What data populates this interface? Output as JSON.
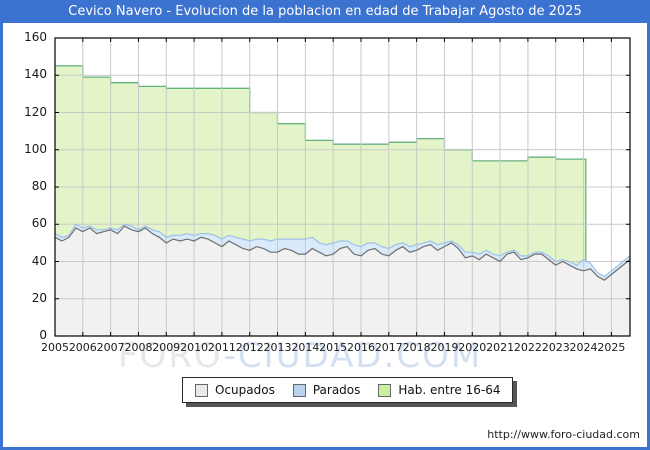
{
  "header": {
    "title": "Cevico Navero - Evolucion de la poblacion en edad de Trabajar Agosto de 2025"
  },
  "footer": {
    "url": "http://www.foro-ciudad.com"
  },
  "watermark": {
    "part1": "FORO",
    "part2": "-CIUDAD.COM"
  },
  "legend": {
    "items": [
      {
        "label": "Ocupados"
      },
      {
        "label": "Parados"
      },
      {
        "label": "Hab. entre 16-64"
      }
    ]
  },
  "colors": {
    "header_bg": "#3c72d0",
    "frame": "#3c72d0",
    "plot_border": "#000000",
    "grid": "#c9c9c9",
    "ocupados_fill": "#f1f1f1",
    "ocupados_line": "#6e6e6e",
    "parados_fill": "#d9eafb",
    "parados_line": "#9fc0e8",
    "hab_fill": "#e3f5c8",
    "hab_line": "#63b17d",
    "legend_ocupados_swatch": "#e9e9e9",
    "legend_parados_swatch": "#b9d3ee",
    "legend_hab_swatch": "#c9ef9e",
    "watermark_gray": "#e7e7e7",
    "watermark_blue": "#d3e0f2"
  },
  "chart_data": {
    "type": "area",
    "title": "Cevico Navero - Evolucion de la poblacion en edad de Trabajar Agosto de 2025",
    "legend_position": "bottom",
    "grid": true,
    "x_axis": {
      "min": 2005,
      "max": 2025.67,
      "tick_labels": [
        "2005",
        "2006",
        "2007",
        "2008",
        "2009",
        "2010",
        "2011",
        "2012",
        "2013",
        "2014",
        "2015",
        "2016",
        "2017",
        "2018",
        "2019",
        "2020",
        "2021",
        "2022",
        "2023",
        "2024",
        "2025"
      ]
    },
    "y_axis": {
      "min": 0,
      "max": 160,
      "ticks": [
        0,
        20,
        40,
        60,
        80,
        100,
        120,
        140,
        160
      ]
    },
    "series": [
      {
        "name": "Hab. entre 16-64",
        "kind": "step-area-yearly",
        "years": [
          2005,
          2006,
          2007,
          2008,
          2009,
          2010,
          2011,
          2012,
          2013,
          2014,
          2015,
          2016,
          2017,
          2018,
          2019,
          2020,
          2021,
          2022,
          2023
        ],
        "values": [
          145,
          139,
          136,
          134,
          133,
          133,
          133,
          120,
          114,
          105,
          103,
          103,
          104,
          106,
          100,
          94,
          94,
          96,
          95
        ],
        "end_x": 2024.08
      },
      {
        "name": "Ocupados",
        "kind": "area-quarterly",
        "x_start": 2005,
        "x_step": 0.25,
        "values": [
          53,
          51,
          53,
          58,
          56,
          58,
          55,
          56,
          57,
          55,
          59,
          57,
          56,
          58,
          55,
          53,
          50,
          52,
          51,
          52,
          51,
          53,
          52,
          50,
          48,
          51,
          49,
          47,
          46,
          48,
          47,
          45,
          45,
          47,
          46,
          44,
          44,
          47,
          45,
          43,
          44,
          47,
          48,
          44,
          43,
          46,
          47,
          44,
          43,
          46,
          48,
          45,
          46,
          48,
          49,
          46,
          48,
          50,
          47,
          42,
          43,
          41,
          44,
          42,
          40,
          44,
          45,
          41,
          42,
          44,
          44,
          41,
          38,
          40,
          38,
          36,
          35,
          36,
          32,
          30,
          33,
          36,
          41
        ]
      },
      {
        "name": "Parados",
        "kind": "stacked-band-quarterly",
        "stacked_on": "Ocupados",
        "x_start": 2005,
        "x_step": 0.25,
        "values": [
          2,
          2,
          1,
          2,
          2,
          1,
          2,
          1,
          1,
          2,
          1,
          2,
          1,
          1,
          2,
          3,
          3,
          2,
          3,
          3,
          3,
          2,
          3,
          4,
          4,
          3,
          4,
          5,
          5,
          4,
          5,
          6,
          7,
          5,
          6,
          8,
          8,
          6,
          5,
          6,
          6,
          4,
          3,
          5,
          5,
          4,
          3,
          4,
          4,
          3,
          2,
          3,
          3,
          2,
          2,
          3,
          2,
          1,
          2,
          3,
          2,
          3,
          2,
          2,
          3,
          1,
          1,
          2,
          1,
          1,
          1,
          2,
          2,
          1,
          2,
          2,
          6,
          3,
          2,
          2,
          2,
          2,
          2
        ]
      }
    ]
  }
}
